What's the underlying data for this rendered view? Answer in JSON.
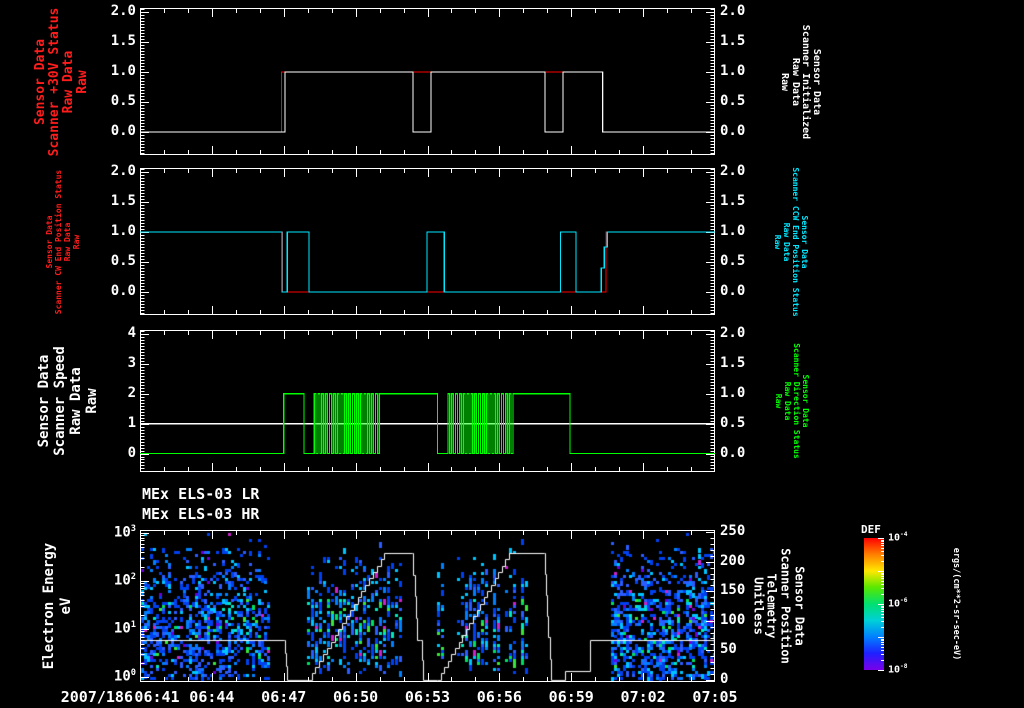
{
  "chart_data": {
    "type": "multi-panel-timeseries-spectrogram",
    "x_axis": {
      "date_label": "2007/186",
      "tick_labels": [
        "06:41",
        "06:44",
        "06:47",
        "06:50",
        "06:53",
        "06:56",
        "06:59",
        "07:02",
        "07:05"
      ],
      "range_minutes": [
        0,
        24
      ],
      "major_step_min": 3,
      "minor_step_min": 1
    },
    "panels": [
      {
        "id": "scanner-30v-status",
        "left_label": {
          "lines": [
            "Sensor Data",
            "Scanner +30V Status",
            "Raw Data",
            "Raw"
          ],
          "color": "#ff1c1c"
        },
        "right_label": {
          "lines": [
            "Sensor Data",
            "Scanner Initialized",
            "Raw Data",
            "Raw"
          ],
          "color": "#ffffff"
        },
        "left_ticks": [
          "2.0",
          "1.5",
          "1.0",
          "0.5",
          "0.0"
        ],
        "right_ticks": [
          "2.0",
          "1.5",
          "1.0",
          "0.5",
          "0.0"
        ],
        "y_range": [
          0,
          2
        ],
        "series": [
          {
            "name": "scanner-plus-30v-status-raw",
            "color": "#ff0000",
            "points": [
              [
                0,
                0
              ],
              [
                5.9,
                0
              ],
              [
                5.9,
                1
              ],
              [
                19.35,
                1
              ],
              [
                19.35,
                0
              ],
              [
                24,
                0
              ]
            ]
          },
          {
            "name": "scanner-initialized-raw",
            "color": "#ffffff",
            "points": [
              [
                0,
                0
              ],
              [
                6.05,
                0
              ],
              [
                6.05,
                1
              ],
              [
                11.4,
                1
              ],
              [
                11.4,
                0
              ],
              [
                12.15,
                0
              ],
              [
                12.15,
                1
              ],
              [
                16.9,
                1
              ],
              [
                16.9,
                0
              ],
              [
                17.65,
                0
              ],
              [
                17.65,
                1
              ],
              [
                19.3,
                1
              ],
              [
                19.3,
                0
              ],
              [
                24,
                0
              ]
            ]
          }
        ]
      },
      {
        "id": "scanner-end-position-status",
        "left_label": {
          "lines": [
            "Sensor Data",
            "Scanner CW End Position Status",
            "Raw Data",
            "Raw"
          ],
          "color": "#ff1c1c"
        },
        "right_label": {
          "lines": [
            "Sensor Data",
            "Scanner CCW End Position Status",
            "Raw Data",
            "Raw"
          ],
          "color": "#00e8ff"
        },
        "left_ticks": [
          "2.0",
          "1.5",
          "1.0",
          "0.5",
          "0.0"
        ],
        "right_ticks": [
          "2.0",
          "1.5",
          "1.0",
          "0.5",
          "0.0"
        ],
        "y_range": [
          0,
          2
        ],
        "series": [
          {
            "name": "scanner-cw-end-position-status-raw",
            "color": "#ff0000",
            "points": [
              [
                0,
                1
              ],
              [
                5.95,
                1
              ],
              [
                5.95,
                0
              ],
              [
                19.45,
                0
              ],
              [
                19.45,
                1
              ],
              [
                24,
                1
              ]
            ]
          },
          {
            "name": "scanner-ccw-end-position-status-raw",
            "color": "#00e8ff",
            "points": [
              [
                0,
                1
              ],
              [
                5.93,
                1
              ],
              [
                5.93,
                0
              ],
              [
                6.15,
                0
              ],
              [
                6.15,
                1
              ],
              [
                7.05,
                1
              ],
              [
                7.05,
                0
              ],
              [
                11.98,
                0
              ],
              [
                11.98,
                1
              ],
              [
                12.7,
                1
              ],
              [
                12.7,
                0
              ],
              [
                17.55,
                0
              ],
              [
                17.55,
                1
              ],
              [
                18.2,
                1
              ],
              [
                18.2,
                0
              ],
              [
                19.25,
                0
              ],
              [
                19.25,
                0.4
              ],
              [
                19.38,
                0.4
              ],
              [
                19.38,
                0.75
              ],
              [
                19.5,
                0.75
              ],
              [
                19.5,
                1
              ],
              [
                24,
                1
              ]
            ]
          }
        ]
      },
      {
        "id": "scanner-speed-direction",
        "left_label": {
          "lines": [
            "Sensor Data",
            "Scanner Speed",
            "Raw Data",
            "Raw"
          ],
          "color": "#ffffff"
        },
        "right_label": {
          "lines": [
            "Sensor Data",
            "Scanner Direction Status",
            "Raw Data",
            "Raw"
          ],
          "color": "#00ff00"
        },
        "left_ticks": [
          "4",
          "3",
          "2",
          "1",
          "0"
        ],
        "right_ticks": [
          "2.0",
          "1.5",
          "1.0",
          "0.5",
          "0.0"
        ],
        "y_range_left": [
          0,
          4
        ],
        "y_range_right": [
          0,
          2
        ],
        "series": [
          {
            "name": "scanner-speed-raw",
            "color": "#ffffff",
            "axis": "left",
            "points": [
              [
                0,
                1
              ],
              [
                24,
                1
              ]
            ]
          },
          {
            "name": "scanner-direction-status-raw",
            "color": "#00ff00",
            "axis": "right",
            "segments": [
              {
                "type": "flat",
                "t0": 0,
                "t1": 6.0,
                "v": 0
              },
              {
                "type": "flat",
                "t0": 6.0,
                "t1": 6.85,
                "v": 1
              },
              {
                "type": "flat",
                "t0": 6.85,
                "t1": 7.27,
                "v": 0
              },
              {
                "type": "osc",
                "t0": 7.27,
                "t1": 10.06,
                "period": 0.16
              },
              {
                "type": "flat",
                "t0": 10.06,
                "t1": 12.42,
                "v": 1
              },
              {
                "type": "flat",
                "t0": 12.42,
                "t1": 12.85,
                "v": 0
              },
              {
                "type": "osc",
                "t0": 12.85,
                "t1": 15.62,
                "period": 0.16
              },
              {
                "type": "flat",
                "t0": 15.62,
                "t1": 17.95,
                "v": 1
              },
              {
                "type": "flat",
                "t0": 17.95,
                "t1": 24,
                "v": 0
              }
            ]
          }
        ]
      },
      {
        "id": "els-spectrogram",
        "titles": [
          "MEx ELS-03 LR",
          "MEx ELS-03 HR"
        ],
        "left_label": {
          "lines": [
            "Electron Energy",
            "eV"
          ],
          "color": "#ffffff"
        },
        "right_label": {
          "lines": [
            "Sensor Data",
            "Scanner Position",
            "Telemetry",
            "Unitless"
          ],
          "color": "#ffffff"
        },
        "left_ticks": [
          {
            "base": "10",
            "exp": "3",
            "v": 3
          },
          {
            "base": "10",
            "exp": "2",
            "v": 2
          },
          {
            "base": "10",
            "exp": "1",
            "v": 1
          },
          {
            "base": "10",
            "exp": "0",
            "v": 0
          }
        ],
        "right_ticks": [
          "250",
          "200",
          "150",
          "100",
          "50",
          "0"
        ],
        "y_range_right": [
          0,
          250
        ],
        "spectrogram": {
          "seed": 20071866,
          "blocks": [
            {
              "t0": 0.05,
              "t1": 5.35,
              "style": "dense"
            },
            {
              "t0": 6.97,
              "t1": 10.85,
              "style": "columns"
            },
            {
              "t0": 12.4,
              "t1": 16.27,
              "style": "columns"
            },
            {
              "t0": 19.66,
              "t1": 23.97,
              "style": "dense"
            }
          ],
          "palette": {
            "blue": "#0040f0",
            "blue2": "#2b5cff",
            "azure": "#0080ff",
            "cyan": "#00c4ff",
            "teal": "#00e8c0",
            "green": "#00e060",
            "green2": "#38e838",
            "violet": "#6a00e0",
            "magenta": "#cc22cc"
          }
        },
        "telemetry": {
          "name": "scanner-position-telemetry",
          "color": "#ffffff",
          "segments": [
            {
              "type": "flat",
              "t0": 0,
              "t1": 6.0,
              "v": 68
            },
            {
              "type": "stair",
              "t0": 6.0,
              "t1": 6.15,
              "v0": 68,
              "v1": 0,
              "steps": 3
            },
            {
              "type": "flat",
              "t0": 6.15,
              "t1": 7.0,
              "v": 0
            },
            {
              "type": "stair",
              "t0": 7.0,
              "t1": 10.2,
              "v0": 0,
              "v1": 215,
              "steps": 20
            },
            {
              "type": "flat",
              "t0": 10.2,
              "t1": 11.35,
              "v": 215
            },
            {
              "type": "stair",
              "t0": 11.35,
              "t1": 11.58,
              "v0": 215,
              "v1": 68,
              "steps": 4
            },
            {
              "type": "flat",
              "t0": 11.58,
              "t1": 11.7,
              "v": 68
            },
            {
              "type": "stair",
              "t0": 11.7,
              "t1": 11.8,
              "v0": 68,
              "v1": 0,
              "steps": 2
            },
            {
              "type": "flat",
              "t0": 11.8,
              "t1": 12.4,
              "v": 0
            },
            {
              "type": "stair",
              "t0": 12.4,
              "t1": 15.4,
              "v0": 0,
              "v1": 215,
              "steps": 20
            },
            {
              "type": "flat",
              "t0": 15.4,
              "t1": 16.85,
              "v": 215
            },
            {
              "type": "stair",
              "t0": 16.85,
              "t1": 17.15,
              "v0": 215,
              "v1": 0,
              "steps": 6
            },
            {
              "type": "flat",
              "t0": 17.15,
              "t1": 17.75,
              "v": 0
            },
            {
              "type": "flat",
              "t0": 17.75,
              "t1": 18.78,
              "v": 14
            },
            {
              "type": "flat",
              "t0": 18.78,
              "t1": 24,
              "v": 68
            }
          ]
        }
      }
    ],
    "colorbar": {
      "title": "DEF",
      "ticks": [
        {
          "base": "10",
          "exp": "-4",
          "f": 0
        },
        {
          "base": "10",
          "exp": "-6",
          "f": 0.5
        },
        {
          "base": "10",
          "exp": "-8",
          "f": 1
        }
      ],
      "unit": "ergs/(cm**2-sr-sec-eV)",
      "gradient": [
        "#ff0000",
        "#ff8000",
        "#ffe800",
        "#58e800",
        "#00e070",
        "#00d0d8",
        "#0080ff",
        "#2020ff",
        "#7a00e8"
      ]
    }
  }
}
